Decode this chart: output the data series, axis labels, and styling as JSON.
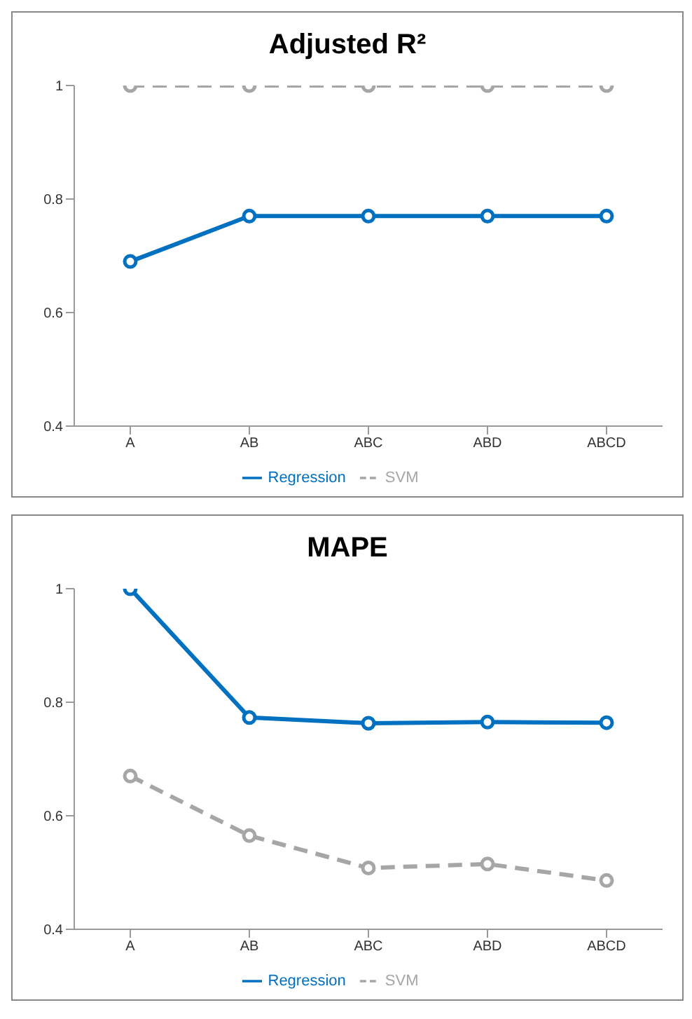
{
  "chart_data": [
    {
      "type": "line",
      "title": "Adjusted R²",
      "categories": [
        "A",
        "AB",
        "ABC",
        "ABD",
        "ABCD"
      ],
      "ylim": [
        0.4,
        1
      ],
      "yticks": [
        0.4,
        0.6,
        0.8,
        1
      ],
      "grid": false,
      "legend": "bottom",
      "marker": "circle",
      "series": [
        {
          "name": "Regression",
          "color": "#0070c0",
          "line_style": "solid",
          "values": [
            0.69,
            0.77,
            0.77,
            0.77,
            0.77
          ]
        },
        {
          "name": "SVM",
          "color": "#a6a6a6",
          "line_style": "dashed",
          "values": [
            1,
            1,
            1,
            1,
            1
          ]
        }
      ]
    },
    {
      "type": "line",
      "title": "MAPE",
      "categories": [
        "A",
        "AB",
        "ABC",
        "ABD",
        "ABCD"
      ],
      "ylim": [
        0.4,
        1
      ],
      "yticks": [
        0.4,
        0.6,
        0.8,
        1
      ],
      "grid": false,
      "legend": "bottom",
      "marker": "circle",
      "series": [
        {
          "name": "Regression",
          "color": "#0070c0",
          "line_style": "solid",
          "values": [
            1,
            0.773,
            0.763,
            0.765,
            0.764
          ]
        },
        {
          "name": "SVM",
          "color": "#a6a6a6",
          "line_style": "dashed",
          "values": [
            0.67,
            0.565,
            0.508,
            0.515,
            0.486
          ]
        }
      ]
    }
  ]
}
